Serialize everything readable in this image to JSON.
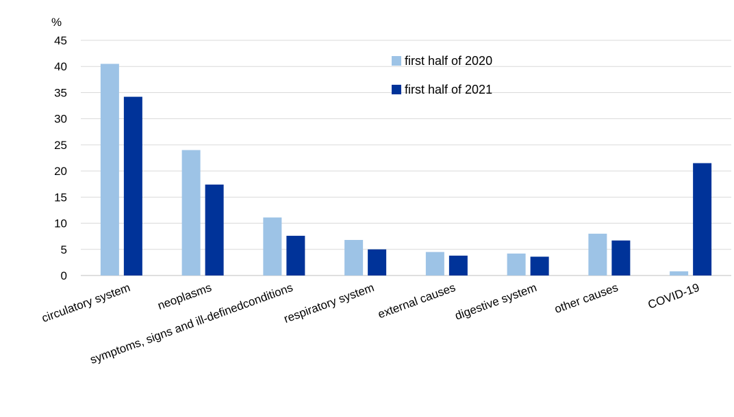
{
  "chart_data": {
    "type": "bar",
    "ylabel": "%",
    "ylim": [
      0,
      45
    ],
    "yticks": [
      0,
      5,
      10,
      15,
      20,
      25,
      30,
      35,
      40,
      45
    ],
    "grid": true,
    "legend_position": "top-center",
    "categories": [
      "circulatory system",
      "neoplasms",
      "symptoms, signs and ill-definedconditions",
      "respiratory system",
      "external causes",
      "digestive system",
      "other causes",
      "COVID-19"
    ],
    "series": [
      {
        "name": "first half of 2020",
        "color": "#9dc3e6",
        "values": [
          40.5,
          24.0,
          11.1,
          6.8,
          4.5,
          4.2,
          8.0,
          0.8
        ]
      },
      {
        "name": "first half of 2021",
        "color": "#003399",
        "values": [
          34.2,
          17.4,
          7.6,
          5.0,
          3.8,
          3.6,
          6.7,
          21.5
        ]
      }
    ]
  }
}
